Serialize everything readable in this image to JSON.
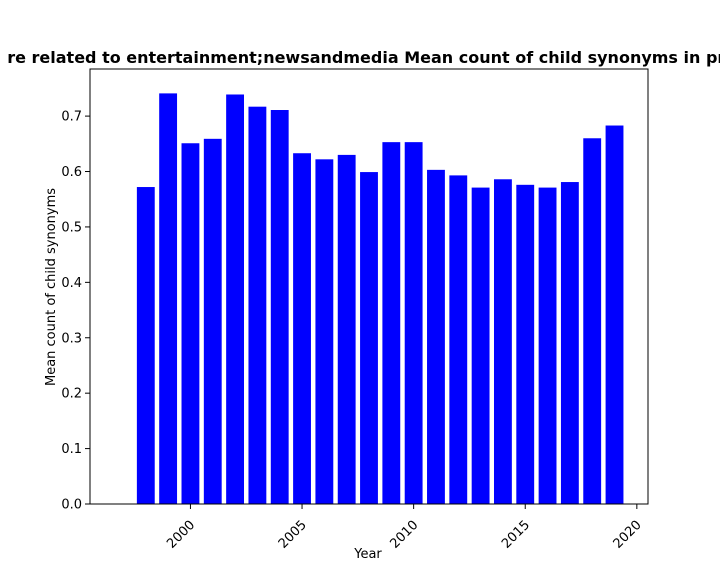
{
  "chart_data": {
    "type": "bar",
    "title": "re related to entertainment;newsandmedia Mean count of child synonyms in pri",
    "xlabel": "Year",
    "ylabel": "Mean count of child synonyms",
    "x": [
      1998,
      1999,
      2000,
      2001,
      2002,
      2003,
      2004,
      2005,
      2006,
      2007,
      2008,
      2009,
      2010,
      2011,
      2012,
      2013,
      2014,
      2015,
      2016,
      2017,
      2018,
      2019
    ],
    "values": [
      0.572,
      0.741,
      0.651,
      0.659,
      0.739,
      0.717,
      0.711,
      0.633,
      0.622,
      0.63,
      0.599,
      0.653,
      0.653,
      0.603,
      0.593,
      0.571,
      0.586,
      0.576,
      0.571,
      0.581,
      0.66,
      0.683
    ],
    "xlim": [
      1995.5,
      2020.5
    ],
    "ylim": [
      0,
      0.785
    ],
    "xticks": [
      "2000",
      "2005",
      "2010",
      "2015",
      "2020"
    ],
    "yticks": [
      "0.0",
      "0.1",
      "0.2",
      "0.3",
      "0.4",
      "0.5",
      "0.6",
      "0.7"
    ],
    "bar_color": "#0000ff",
    "grid": false,
    "legend": "none"
  }
}
